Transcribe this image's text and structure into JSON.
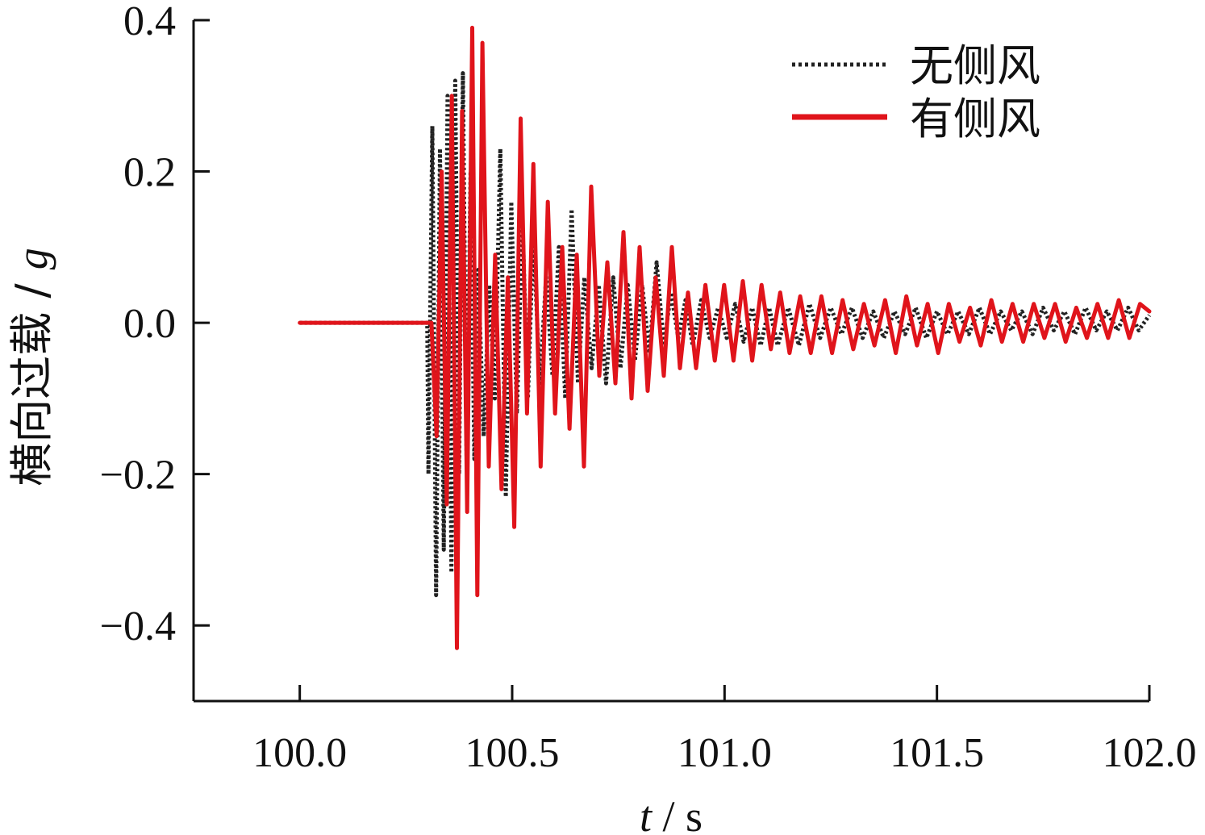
{
  "chart_data": {
    "type": "line",
    "xlabel_var": "t",
    "xlabel_sep": " / ",
    "xlabel_unit": "s",
    "ylabel_text": "横向过载 / ",
    "ylabel_var": "g",
    "xlim": [
      99.75,
      102.0
    ],
    "ylim": [
      -0.5,
      0.4
    ],
    "x_ticks": [
      100.0,
      100.5,
      101.0,
      101.5,
      102.0
    ],
    "x_tick_labels": [
      "100.0",
      "100.5",
      "101.0",
      "101.5",
      "102.0"
    ],
    "y_ticks": [
      0.4,
      0.2,
      0.0,
      -0.2,
      -0.4
    ],
    "y_tick_labels": [
      "0.4",
      "0.2",
      "0.0",
      "−0.2",
      "−0.4"
    ],
    "grid": false,
    "legend_position": "top-right",
    "series": [
      {
        "name": "无侧风",
        "color": "#222222",
        "style": "dotted",
        "x": [
          100.0,
          100.28,
          100.3,
          100.303,
          100.312,
          100.321,
          100.33,
          100.339,
          100.348,
          100.357,
          100.366,
          100.375,
          100.384,
          100.393,
          100.402,
          100.411,
          100.42,
          100.433,
          100.446,
          100.459,
          100.472,
          100.485,
          100.498,
          100.511,
          100.524,
          100.537,
          100.55,
          100.565,
          100.58,
          100.595,
          100.61,
          100.625,
          100.64,
          100.655,
          100.67,
          100.687,
          100.704,
          100.721,
          100.738,
          100.755,
          100.772,
          100.789,
          100.806,
          100.823,
          100.84,
          100.857,
          100.874,
          100.891,
          100.908,
          100.925,
          100.945,
          100.965,
          100.985,
          101.005,
          101.025,
          101.045,
          101.065,
          101.085,
          101.105,
          101.125,
          101.15,
          101.175,
          101.2,
          101.225,
          101.25,
          101.275,
          101.3,
          101.325,
          101.35,
          101.375,
          101.4,
          101.425,
          101.45,
          101.475,
          101.5,
          101.525,
          101.55,
          101.575,
          101.6,
          101.625,
          101.65,
          101.675,
          101.7,
          101.725,
          101.75,
          101.775,
          101.8,
          101.825,
          101.85,
          101.875,
          101.9,
          101.925,
          101.95,
          101.975,
          102.0
        ],
        "y": [
          0.0,
          0.0,
          0.0,
          -0.2,
          0.26,
          -0.36,
          0.23,
          -0.3,
          0.3,
          -0.33,
          0.32,
          -0.2,
          0.33,
          -0.19,
          0.2,
          -0.18,
          0.07,
          -0.15,
          0.05,
          -0.1,
          0.23,
          -0.23,
          0.16,
          -0.12,
          0.14,
          -0.1,
          0.12,
          -0.08,
          0.06,
          -0.07,
          0.1,
          -0.1,
          0.15,
          -0.08,
          0.06,
          -0.06,
          0.05,
          -0.08,
          0.06,
          -0.06,
          0.05,
          -0.05,
          0.05,
          -0.04,
          0.08,
          -0.03,
          0.04,
          -0.02,
          0.03,
          -0.03,
          0.03,
          -0.02,
          0.02,
          -0.02,
          0.025,
          -0.025,
          0.02,
          -0.03,
          0.02,
          -0.03,
          0.02,
          -0.03,
          0.025,
          -0.02,
          0.02,
          -0.015,
          0.02,
          -0.02,
          0.015,
          -0.02,
          0.015,
          -0.015,
          0.02,
          -0.02,
          0.015,
          -0.015,
          0.015,
          -0.015,
          0.02,
          -0.015,
          0.015,
          -0.01,
          0.015,
          -0.015,
          0.02,
          -0.01,
          0.015,
          -0.015,
          0.02,
          -0.01,
          0.015,
          -0.01,
          0.02,
          -0.01,
          0.01
        ]
      },
      {
        "name": "有侧风",
        "color": "#e0141b",
        "style": "solid",
        "x": [
          100.0,
          100.3,
          100.31,
          100.322,
          100.334,
          100.346,
          100.358,
          100.37,
          100.382,
          100.394,
          100.406,
          100.418,
          100.43,
          100.445,
          100.46,
          100.475,
          100.49,
          100.505,
          100.52,
          100.535,
          100.55,
          100.567,
          100.584,
          100.601,
          100.618,
          100.635,
          100.652,
          100.669,
          100.686,
          100.705,
          100.724,
          100.743,
          100.762,
          100.781,
          100.8,
          100.819,
          100.838,
          100.857,
          100.876,
          100.895,
          100.914,
          100.933,
          100.955,
          100.977,
          100.999,
          101.021,
          101.043,
          101.065,
          101.087,
          101.109,
          101.131,
          101.153,
          101.178,
          101.203,
          101.228,
          101.253,
          101.278,
          101.303,
          101.328,
          101.353,
          101.378,
          101.403,
          101.428,
          101.453,
          101.478,
          101.503,
          101.528,
          101.553,
          101.578,
          101.603,
          101.628,
          101.653,
          101.678,
          101.703,
          101.728,
          101.753,
          101.778,
          101.803,
          101.828,
          101.853,
          101.878,
          101.903,
          101.928,
          101.953,
          101.978,
          102.0
        ],
        "y": [
          0.0,
          0.0,
          0.0,
          -0.15,
          0.2,
          -0.24,
          0.3,
          -0.43,
          0.28,
          -0.25,
          0.39,
          -0.36,
          0.37,
          -0.19,
          0.09,
          -0.22,
          0.06,
          -0.27,
          0.27,
          -0.12,
          0.21,
          -0.19,
          0.16,
          -0.12,
          0.1,
          -0.14,
          0.09,
          -0.19,
          0.18,
          -0.07,
          0.08,
          -0.08,
          0.12,
          -0.1,
          0.1,
          -0.09,
          0.06,
          -0.07,
          0.1,
          -0.06,
          0.04,
          -0.06,
          0.05,
          -0.05,
          0.05,
          -0.05,
          0.055,
          -0.05,
          0.05,
          -0.035,
          0.04,
          -0.04,
          0.035,
          -0.04,
          0.035,
          -0.04,
          0.03,
          -0.035,
          0.025,
          -0.03,
          0.03,
          -0.04,
          0.035,
          -0.03,
          0.025,
          -0.04,
          0.025,
          -0.025,
          0.02,
          -0.03,
          0.03,
          -0.025,
          0.025,
          -0.025,
          0.025,
          -0.02,
          0.025,
          -0.025,
          0.02,
          -0.02,
          0.025,
          -0.02,
          0.03,
          -0.02,
          0.025,
          0.015
        ]
      }
    ]
  }
}
